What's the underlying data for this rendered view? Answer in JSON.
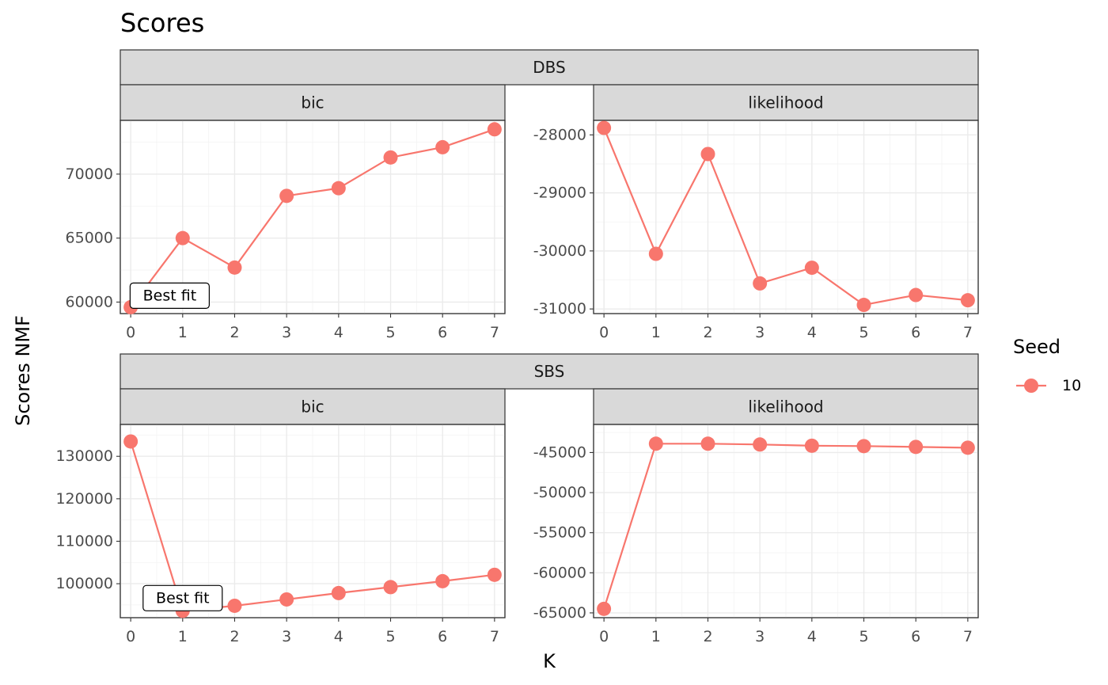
{
  "chart_data": {
    "type": "line",
    "title": "Scores",
    "xlabel": "K",
    "ylabel": "Scores NMF",
    "legend": {
      "title": "Seed",
      "placement": "right",
      "entries": [
        "10"
      ]
    },
    "color": "#F8766D",
    "x_ticks": [
      "0",
      "1",
      "2",
      "3",
      "4",
      "5",
      "6",
      "7"
    ],
    "x": [
      0,
      1,
      2,
      3,
      4,
      5,
      6,
      7
    ],
    "xlim": [
      -0.2,
      7.2
    ],
    "grid": true,
    "panels": [
      {
        "group": "DBS",
        "facet": "bic",
        "y": [
          59600,
          65000,
          62700,
          68300,
          68900,
          71300,
          72100,
          73500
        ],
        "ylim": [
          59100,
          74200
        ],
        "y_ticks": [
          {
            "value": 60000,
            "label": "60000"
          },
          {
            "value": 65000,
            "label": "65000"
          },
          {
            "value": 70000,
            "label": "70000"
          }
        ],
        "annotation": {
          "text": "Best fit",
          "x": 0.75,
          "y": 60500
        }
      },
      {
        "group": "DBS",
        "facet": "likelihood",
        "y": [
          -27880,
          -30050,
          -28330,
          -30560,
          -30290,
          -30930,
          -30760,
          -30850
        ],
        "ylim": [
          -31080,
          -27750
        ],
        "y_ticks": [
          {
            "value": -31000,
            "label": "-31000"
          },
          {
            "value": -30000,
            "label": "-30000"
          },
          {
            "value": -29000,
            "label": "-29000"
          },
          {
            "value": -28000,
            "label": "-28000"
          }
        ]
      },
      {
        "group": "SBS",
        "facet": "bic",
        "y": [
          133500,
          93600,
          94800,
          96300,
          97800,
          99200,
          100600,
          102100
        ],
        "ylim": [
          92000,
          137500
        ],
        "y_ticks": [
          {
            "value": 100000,
            "label": "100000"
          },
          {
            "value": 110000,
            "label": "110000"
          },
          {
            "value": 120000,
            "label": "120000"
          },
          {
            "value": 130000,
            "label": "130000"
          }
        ],
        "annotation": {
          "text": "Best fit",
          "x": 1,
          "y": 96600
        }
      },
      {
        "group": "SBS",
        "facet": "likelihood",
        "y": [
          -64500,
          -43900,
          -43900,
          -44000,
          -44150,
          -44200,
          -44300,
          -44400
        ],
        "ylim": [
          -65600,
          -41500
        ],
        "y_ticks": [
          {
            "value": -65000,
            "label": "-65000"
          },
          {
            "value": -60000,
            "label": "-60000"
          },
          {
            "value": -55000,
            "label": "-55000"
          },
          {
            "value": -50000,
            "label": "-50000"
          },
          {
            "value": -45000,
            "label": "-45000"
          }
        ]
      }
    ]
  }
}
